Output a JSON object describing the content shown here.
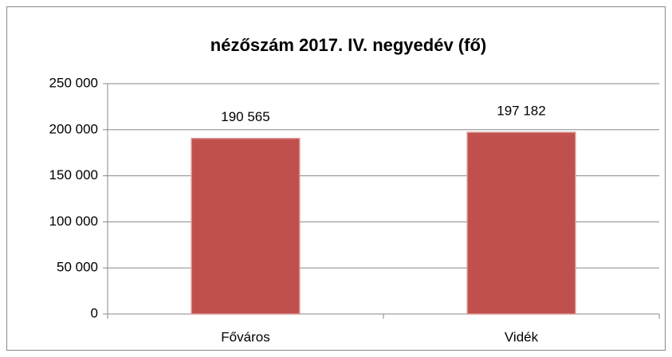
{
  "chart_data": {
    "type": "bar",
    "title": "nézőszám 2017. IV. negyedév (fő)",
    "categories": [
      "Főváros",
      "Vidék"
    ],
    "values": [
      190565,
      197182
    ],
    "value_labels": [
      "190 565",
      "197 182"
    ],
    "color": "#c0504d",
    "ylim": [
      0,
      250000
    ],
    "yticks": [
      0,
      {
        "value": 50000,
        "label": "50 000"
      },
      {
        "value": 100000,
        "label": "100 000"
      },
      {
        "value": 150000,
        "label": "150 000"
      },
      {
        "value": 200000,
        "label": "200 000"
      },
      {
        "value": 250000,
        "label": "250 000"
      }
    ],
    "grid": true
  }
}
